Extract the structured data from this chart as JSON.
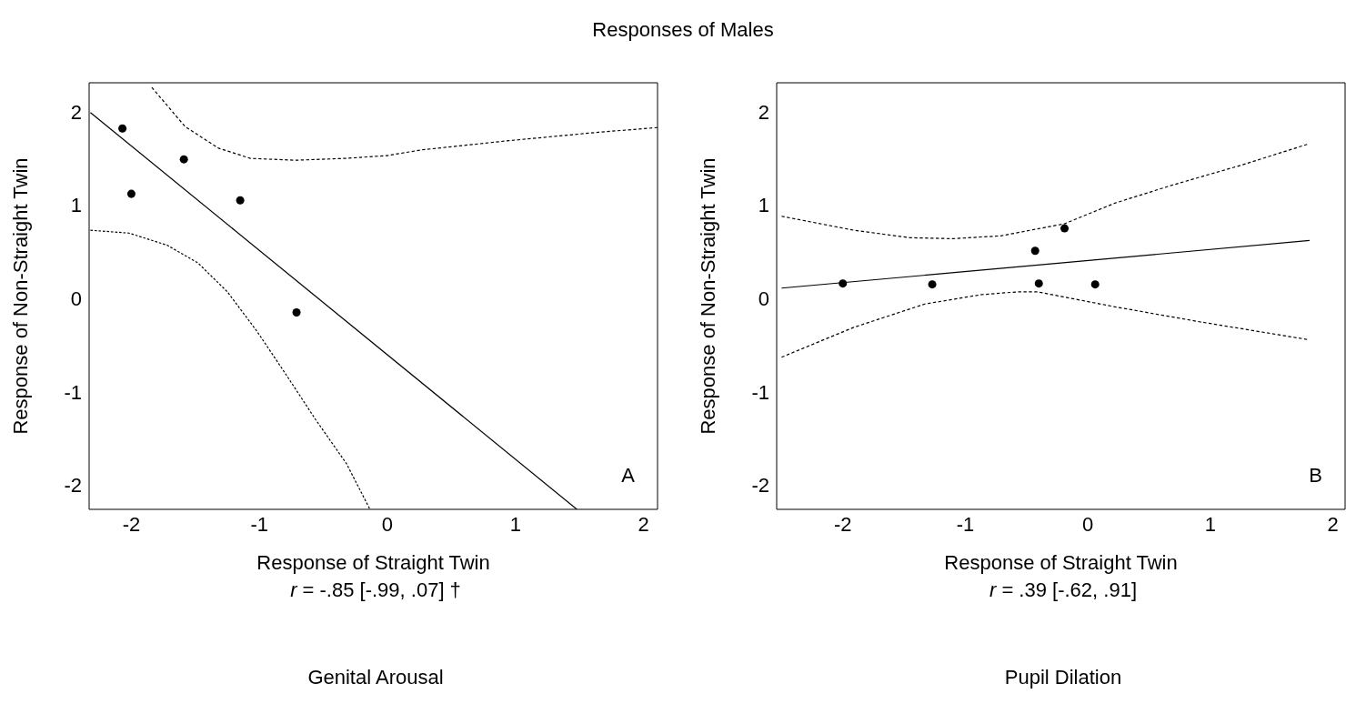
{
  "chart_data": [
    {
      "type": "scatter",
      "title": "Responses of Males",
      "subtitle": "Genital Arousal",
      "xlabel": "Response of Straight Twin",
      "ylabel": "Response of Non-Straight Twin",
      "annotations": [
        "r = -.85 [-.99, .07] †",
        "A"
      ],
      "xlim": [
        -2.33,
        2.11
      ],
      "xticks": [
        -2,
        -1,
        0,
        1,
        2
      ],
      "ylim": [
        -2.26,
        2.31
      ],
      "yticks": [
        -2,
        -1,
        0,
        1,
        2
      ],
      "series": [
        {
          "type": "scatter",
          "marker": "circle",
          "color": "#000000",
          "x": [
            -2.07,
            -2.0,
            -1.59,
            -1.15,
            -0.71
          ],
          "values": [
            1.82,
            1.12,
            1.49,
            1.05,
            -0.15
          ]
        },
        {
          "type": "line",
          "color": "#000000",
          "line_style": "solid",
          "x": [
            -2.32,
            1.48
          ],
          "values": [
            1.99,
            -2.26
          ]
        },
        {
          "type": "line",
          "color": "#000000",
          "line_style": "dotted",
          "x": [
            -1.84,
            -1.58,
            -1.32,
            -1.07,
            -0.72,
            -0.33,
            0,
            0.26,
            0.95,
            1.65,
            2.11
          ],
          "values": [
            2.26,
            1.84,
            1.61,
            1.5,
            1.48,
            1.5,
            1.53,
            1.59,
            1.69,
            1.78,
            1.83
          ]
        },
        {
          "type": "line",
          "color": "#000000",
          "line_style": "dotted",
          "x": [
            -2.32,
            -2.02,
            -1.72,
            -1.48,
            -1.25,
            -1.02,
            -0.79,
            -0.56,
            -0.32,
            -0.14
          ],
          "values": [
            0.73,
            0.7,
            0.57,
            0.38,
            0.07,
            -0.35,
            -0.82,
            -1.3,
            -1.77,
            -2.25
          ]
        }
      ]
    },
    {
      "type": "scatter",
      "subtitle": "Pupil Dilation",
      "xlabel": "Response of Straight Twin",
      "ylabel": "Response of Non-Straight Twin",
      "annotations": [
        "r = .39 [-.62, .91]",
        "B"
      ],
      "xlim": [
        -2.54,
        2.1
      ],
      "xticks": [
        -2,
        -1,
        0,
        1,
        2
      ],
      "ylim": [
        -2.26,
        2.31
      ],
      "yticks": [
        -2,
        -1,
        0,
        1,
        2
      ],
      "series": [
        {
          "type": "scatter",
          "marker": "circle",
          "color": "#000000",
          "x": [
            -2.0,
            -1.27,
            -0.43,
            -0.19,
            -0.4,
            0.06
          ],
          "values": [
            0.16,
            0.15,
            0.51,
            0.75,
            0.16,
            0.15
          ]
        },
        {
          "type": "line",
          "color": "#000000",
          "line_style": "solid",
          "x": [
            -2.5,
            1.81
          ],
          "values": [
            0.11,
            0.62
          ]
        },
        {
          "type": "line",
          "color": "#000000",
          "line_style": "dotted",
          "x": [
            -2.5,
            -1.91,
            -1.45,
            -1.1,
            -0.71,
            -0.19,
            0.22,
            0.68,
            1.26,
            1.79
          ],
          "values": [
            0.88,
            0.73,
            0.65,
            0.64,
            0.67,
            0.8,
            1.02,
            1.21,
            1.43,
            1.65
          ]
        },
        {
          "type": "line",
          "color": "#000000",
          "line_style": "dotted",
          "x": [
            -2.5,
            -1.91,
            -1.33,
            -0.87,
            -0.57,
            -0.41,
            0.22,
            0.91,
            1.79
          ],
          "values": [
            -0.63,
            -0.31,
            -0.06,
            0.04,
            0.07,
            0.07,
            -0.09,
            -0.25,
            -0.44
          ]
        }
      ]
    }
  ]
}
